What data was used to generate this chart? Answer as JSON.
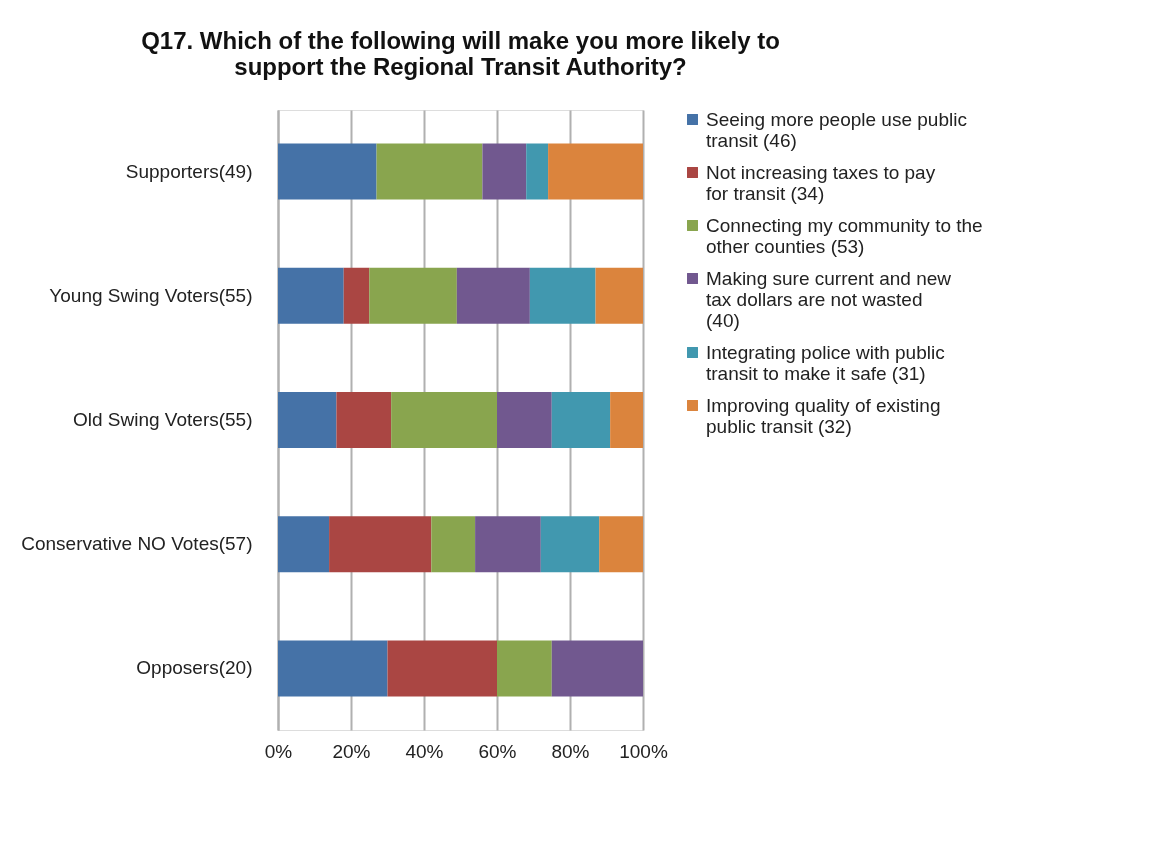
{
  "chart_data": {
    "type": "bar",
    "orientation": "horizontal",
    "stacked": true,
    "title": "Q17. Which of the following will make you more likely to support the Regional Transit Authority?",
    "categories": [
      "Supporters(49)",
      "Young Swing Voters(55)",
      "Old Swing Voters(55)",
      "Conservative NO Votes(57)",
      "Opposers(20)"
    ],
    "series": [
      {
        "name": "Seeing more people use public transit (46)",
        "color": "#4572a7",
        "values": [
          27,
          18,
          16,
          14,
          30
        ]
      },
      {
        "name": "Not increasing taxes to pay for transit (34)",
        "color": "#aa4643",
        "values": [
          0,
          7,
          15,
          28,
          30
        ]
      },
      {
        "name": "Connecting my community to the other counties (53)",
        "color": "#89a54e",
        "values": [
          29,
          24,
          29,
          12,
          15
        ]
      },
      {
        "name": "Making sure current and new tax dollars are not wasted (40)",
        "color": "#71588f",
        "values": [
          12,
          20,
          15,
          18,
          25
        ]
      },
      {
        "name": "Integrating police with public transit to make it safe (31)",
        "color": "#4198af",
        "values": [
          6,
          18,
          16,
          16,
          0
        ]
      },
      {
        "name": "Improving quality of existing public transit (32)",
        "color": "#db843d",
        "values": [
          26,
          13,
          9,
          12,
          0
        ]
      }
    ],
    "xlim": [
      0,
      100
    ],
    "xticks": [
      {
        "value": 0,
        "label": "0%"
      },
      {
        "value": 20,
        "label": "20%"
      },
      {
        "value": 40,
        "label": "40%"
      },
      {
        "value": 60,
        "label": "60%"
      },
      {
        "value": 80,
        "label": "80%"
      },
      {
        "value": 100,
        "label": "100%"
      }
    ],
    "grid": "x",
    "legend": "right"
  }
}
